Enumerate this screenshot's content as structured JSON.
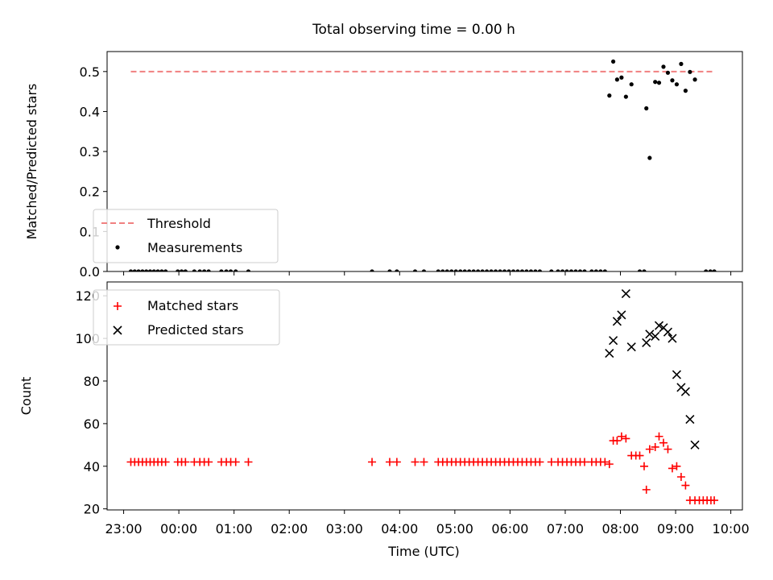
{
  "figure": {
    "title": "Total observing time = 0.00 h"
  },
  "chart_data": [
    {
      "type": "scatter",
      "ylabel": "Matched/Predicted stars",
      "ylim": [
        0,
        0.55
      ],
      "yticks": [
        0.0,
        0.1,
        0.2,
        0.3,
        0.4,
        0.5
      ],
      "ytick_labels": [
        "0.0",
        "0.1",
        "0.2",
        "0.3",
        "0.4",
        "0.5"
      ],
      "xlim_hours": [
        -1.3,
        10.21
      ],
      "legend_loc": "lower left",
      "series": [
        {
          "name": "Threshold",
          "kind": "line",
          "style": "dashed",
          "color": "#f08080",
          "x": [
            -0.87,
            9.69
          ],
          "y": [
            0.5,
            0.5
          ]
        },
        {
          "name": "Measurements",
          "kind": "points",
          "marker": "dot",
          "color": "#000000",
          "x": [
            -0.87,
            -0.8,
            -0.73,
            -0.66,
            -0.59,
            -0.52,
            -0.45,
            -0.38,
            -0.31,
            -0.24,
            -0.02,
            0.05,
            0.12,
            0.28,
            0.38,
            0.46,
            0.54,
            0.77,
            0.86,
            0.94,
            1.03,
            1.26,
            3.5,
            3.82,
            3.95,
            4.28,
            4.44,
            4.7,
            4.78,
            4.86,
            4.94,
            5.02,
            5.1,
            5.18,
            5.26,
            5.34,
            5.42,
            5.5,
            5.58,
            5.66,
            5.74,
            5.82,
            5.9,
            5.98,
            6.06,
            6.14,
            6.22,
            6.3,
            6.38,
            6.46,
            6.54,
            6.75,
            6.87,
            6.95,
            7.03,
            7.11,
            7.19,
            7.27,
            7.35,
            7.48,
            7.56,
            7.64,
            7.72,
            8.35,
            8.43,
            9.55,
            9.63,
            9.7,
            7.8,
            7.87,
            7.94,
            8.02,
            8.1,
            8.2,
            8.47,
            8.53,
            8.63,
            8.7,
            8.78,
            8.86,
            8.94,
            9.02,
            9.1,
            9.18,
            9.26,
            9.35
          ],
          "y": [
            0,
            0,
            0,
            0,
            0,
            0,
            0,
            0,
            0,
            0,
            0,
            0,
            0,
            0,
            0,
            0,
            0,
            0,
            0,
            0,
            0,
            0,
            0,
            0,
            0,
            0,
            0,
            0,
            0,
            0,
            0,
            0,
            0,
            0,
            0,
            0,
            0,
            0,
            0,
            0,
            0,
            0,
            0,
            0,
            0,
            0,
            0,
            0,
            0,
            0,
            0,
            0,
            0,
            0,
            0,
            0,
            0,
            0,
            0,
            0,
            0,
            0,
            0,
            0,
            0,
            0,
            0,
            0,
            0.44,
            0.525,
            0.48,
            0.485,
            0.437,
            0.468,
            0.408,
            0.284,
            0.474,
            0.472,
            0.512,
            0.497,
            0.478,
            0.468,
            0.519,
            0.452,
            0.499,
            0.48
          ]
        }
      ]
    },
    {
      "type": "scatter",
      "xlabel": "Time (UTC)",
      "ylabel": "Count",
      "ylim": [
        19.5,
        126.5
      ],
      "yticks": [
        20,
        40,
        60,
        80,
        100,
        120
      ],
      "ytick_labels": [
        "20",
        "40",
        "60",
        "80",
        "100",
        "120"
      ],
      "xlim_hours": [
        -1.3,
        10.21
      ],
      "xticks_hours": [
        -1,
        0,
        1,
        2,
        3,
        4,
        5,
        6,
        7,
        8,
        9,
        10
      ],
      "xtick_labels": [
        "23:00",
        "00:00",
        "01:00",
        "02:00",
        "03:00",
        "04:00",
        "05:00",
        "06:00",
        "07:00",
        "08:00",
        "09:00",
        "10:00"
      ],
      "legend_loc": "upper left",
      "series": [
        {
          "name": "Matched stars",
          "kind": "points",
          "marker": "plus",
          "color": "#ff0000",
          "x": [
            -0.87,
            -0.8,
            -0.73,
            -0.66,
            -0.59,
            -0.52,
            -0.45,
            -0.38,
            -0.31,
            -0.24,
            -0.02,
            0.05,
            0.12,
            0.28,
            0.38,
            0.46,
            0.54,
            0.77,
            0.86,
            0.94,
            1.03,
            1.26,
            3.5,
            3.82,
            3.95,
            4.28,
            4.44,
            4.7,
            4.78,
            4.86,
            4.94,
            5.02,
            5.1,
            5.18,
            5.26,
            5.34,
            5.42,
            5.5,
            5.58,
            5.66,
            5.74,
            5.82,
            5.9,
            5.98,
            6.06,
            6.14,
            6.22,
            6.3,
            6.38,
            6.46,
            6.54,
            6.75,
            6.87,
            6.95,
            7.03,
            7.11,
            7.19,
            7.27,
            7.35,
            7.48,
            7.56,
            7.64,
            7.72,
            7.8,
            7.87,
            7.94,
            8.02,
            8.1,
            8.2,
            8.28,
            8.35,
            8.43,
            8.47,
            8.53,
            8.63,
            8.7,
            8.78,
            8.86,
            8.94,
            9.02,
            9.1,
            9.18,
            9.26,
            9.35,
            9.43,
            9.5,
            9.57,
            9.64,
            9.7
          ],
          "y": [
            42,
            42,
            42,
            42,
            42,
            42,
            42,
            42,
            42,
            42,
            42,
            42,
            42,
            42,
            42,
            42,
            42,
            42,
            42,
            42,
            42,
            42,
            42,
            42,
            42,
            42,
            42,
            42,
            42,
            42,
            42,
            42,
            42,
            42,
            42,
            42,
            42,
            42,
            42,
            42,
            42,
            42,
            42,
            42,
            42,
            42,
            42,
            42,
            42,
            42,
            42,
            42,
            42,
            42,
            42,
            42,
            42,
            42,
            42,
            42,
            42,
            42,
            42,
            41,
            52,
            52,
            54,
            53,
            45,
            45,
            45,
            40,
            29,
            48,
            49,
            54,
            51,
            48,
            39,
            40,
            35,
            31,
            24,
            24,
            24,
            24,
            24,
            24,
            24
          ]
        },
        {
          "name": "Predicted stars",
          "kind": "points",
          "marker": "x",
          "color": "#000000",
          "x": [
            7.8,
            7.87,
            7.94,
            8.02,
            8.1,
            8.2,
            8.47,
            8.53,
            8.63,
            8.7,
            8.78,
            8.86,
            8.94,
            9.02,
            9.1,
            9.18,
            9.26,
            9.35
          ],
          "y": [
            93,
            99,
            108,
            111,
            121,
            96,
            98,
            102,
            101,
            106,
            105,
            103,
            100,
            83,
            77,
            75,
            62,
            50
          ]
        }
      ]
    }
  ]
}
